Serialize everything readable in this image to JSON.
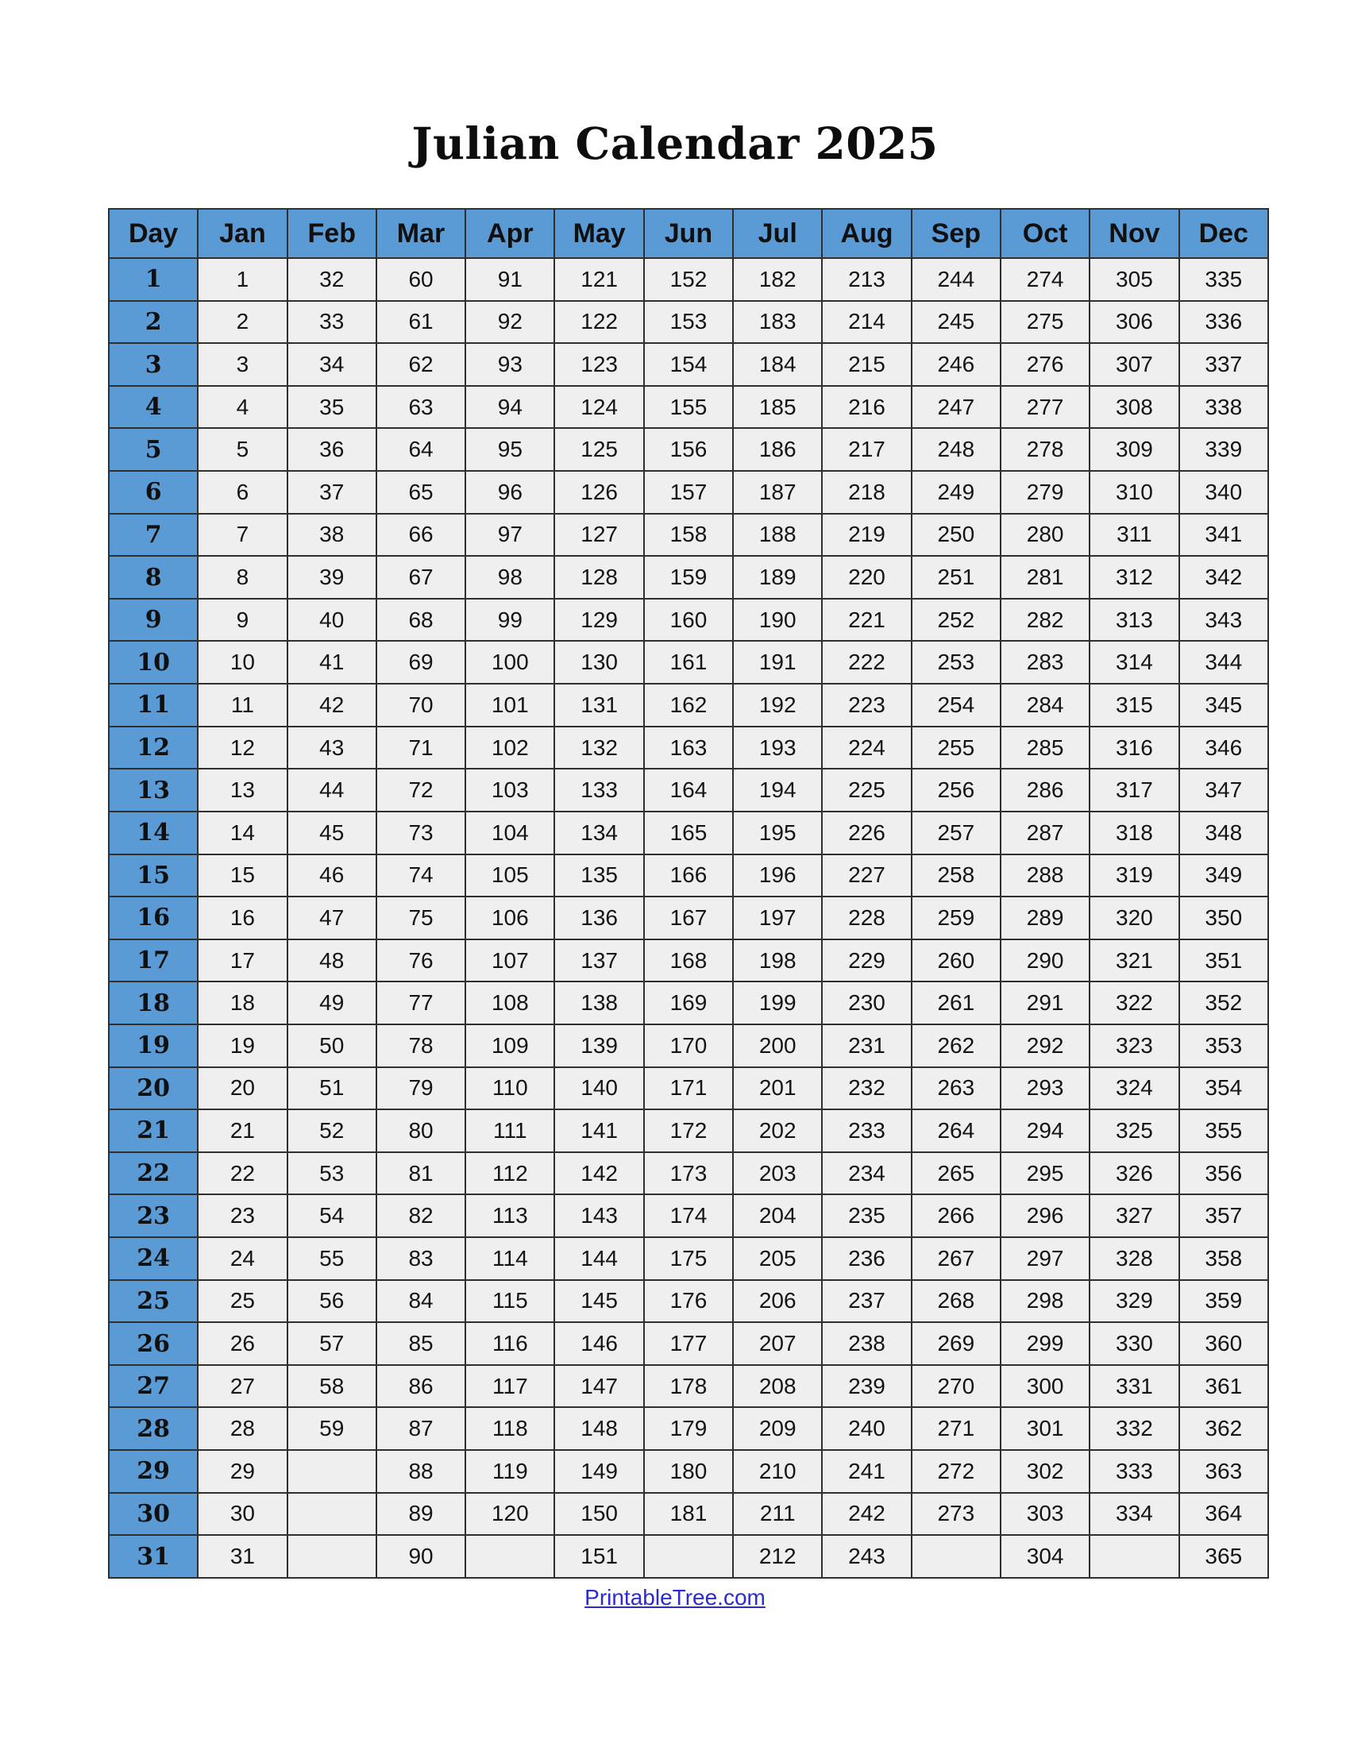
{
  "title": "Julian Calendar 2025",
  "footer": {
    "link_text": "PrintableTree.com"
  },
  "colors": {
    "header_bg": "#5B9BD5",
    "cell_bg": "#EFEFEF",
    "border": "#2F2F2F",
    "link": "#2B2BD2"
  },
  "table": {
    "corner_header": "Day",
    "month_headers": [
      "Jan",
      "Feb",
      "Mar",
      "Apr",
      "May",
      "Jun",
      "Jul",
      "Aug",
      "Sep",
      "Oct",
      "Nov",
      "Dec"
    ],
    "rows": [
      {
        "day": "1",
        "values": [
          "1",
          "32",
          "60",
          "91",
          "121",
          "152",
          "182",
          "213",
          "244",
          "274",
          "305",
          "335"
        ]
      },
      {
        "day": "2",
        "values": [
          "2",
          "33",
          "61",
          "92",
          "122",
          "153",
          "183",
          "214",
          "245",
          "275",
          "306",
          "336"
        ]
      },
      {
        "day": "3",
        "values": [
          "3",
          "34",
          "62",
          "93",
          "123",
          "154",
          "184",
          "215",
          "246",
          "276",
          "307",
          "337"
        ]
      },
      {
        "day": "4",
        "values": [
          "4",
          "35",
          "63",
          "94",
          "124",
          "155",
          "185",
          "216",
          "247",
          "277",
          "308",
          "338"
        ]
      },
      {
        "day": "5",
        "values": [
          "5",
          "36",
          "64",
          "95",
          "125",
          "156",
          "186",
          "217",
          "248",
          "278",
          "309",
          "339"
        ]
      },
      {
        "day": "6",
        "values": [
          "6",
          "37",
          "65",
          "96",
          "126",
          "157",
          "187",
          "218",
          "249",
          "279",
          "310",
          "340"
        ]
      },
      {
        "day": "7",
        "values": [
          "7",
          "38",
          "66",
          "97",
          "127",
          "158",
          "188",
          "219",
          "250",
          "280",
          "311",
          "341"
        ]
      },
      {
        "day": "8",
        "values": [
          "8",
          "39",
          "67",
          "98",
          "128",
          "159",
          "189",
          "220",
          "251",
          "281",
          "312",
          "342"
        ]
      },
      {
        "day": "9",
        "values": [
          "9",
          "40",
          "68",
          "99",
          "129",
          "160",
          "190",
          "221",
          "252",
          "282",
          "313",
          "343"
        ]
      },
      {
        "day": "10",
        "values": [
          "10",
          "41",
          "69",
          "100",
          "130",
          "161",
          "191",
          "222",
          "253",
          "283",
          "314",
          "344"
        ]
      },
      {
        "day": "11",
        "values": [
          "11",
          "42",
          "70",
          "101",
          "131",
          "162",
          "192",
          "223",
          "254",
          "284",
          "315",
          "345"
        ]
      },
      {
        "day": "12",
        "values": [
          "12",
          "43",
          "71",
          "102",
          "132",
          "163",
          "193",
          "224",
          "255",
          "285",
          "316",
          "346"
        ]
      },
      {
        "day": "13",
        "values": [
          "13",
          "44",
          "72",
          "103",
          "133",
          "164",
          "194",
          "225",
          "256",
          "286",
          "317",
          "347"
        ]
      },
      {
        "day": "14",
        "values": [
          "14",
          "45",
          "73",
          "104",
          "134",
          "165",
          "195",
          "226",
          "257",
          "287",
          "318",
          "348"
        ]
      },
      {
        "day": "15",
        "values": [
          "15",
          "46",
          "74",
          "105",
          "135",
          "166",
          "196",
          "227",
          "258",
          "288",
          "319",
          "349"
        ]
      },
      {
        "day": "16",
        "values": [
          "16",
          "47",
          "75",
          "106",
          "136",
          "167",
          "197",
          "228",
          "259",
          "289",
          "320",
          "350"
        ]
      },
      {
        "day": "17",
        "values": [
          "17",
          "48",
          "76",
          "107",
          "137",
          "168",
          "198",
          "229",
          "260",
          "290",
          "321",
          "351"
        ]
      },
      {
        "day": "18",
        "values": [
          "18",
          "49",
          "77",
          "108",
          "138",
          "169",
          "199",
          "230",
          "261",
          "291",
          "322",
          "352"
        ]
      },
      {
        "day": "19",
        "values": [
          "19",
          "50",
          "78",
          "109",
          "139",
          "170",
          "200",
          "231",
          "262",
          "292",
          "323",
          "353"
        ]
      },
      {
        "day": "20",
        "values": [
          "20",
          "51",
          "79",
          "110",
          "140",
          "171",
          "201",
          "232",
          "263",
          "293",
          "324",
          "354"
        ]
      },
      {
        "day": "21",
        "values": [
          "21",
          "52",
          "80",
          "111",
          "141",
          "172",
          "202",
          "233",
          "264",
          "294",
          "325",
          "355"
        ]
      },
      {
        "day": "22",
        "values": [
          "22",
          "53",
          "81",
          "112",
          "142",
          "173",
          "203",
          "234",
          "265",
          "295",
          "326",
          "356"
        ]
      },
      {
        "day": "23",
        "values": [
          "23",
          "54",
          "82",
          "113",
          "143",
          "174",
          "204",
          "235",
          "266",
          "296",
          "327",
          "357"
        ]
      },
      {
        "day": "24",
        "values": [
          "24",
          "55",
          "83",
          "114",
          "144",
          "175",
          "205",
          "236",
          "267",
          "297",
          "328",
          "358"
        ]
      },
      {
        "day": "25",
        "values": [
          "25",
          "56",
          "84",
          "115",
          "145",
          "176",
          "206",
          "237",
          "268",
          "298",
          "329",
          "359"
        ]
      },
      {
        "day": "26",
        "values": [
          "26",
          "57",
          "85",
          "116",
          "146",
          "177",
          "207",
          "238",
          "269",
          "299",
          "330",
          "360"
        ]
      },
      {
        "day": "27",
        "values": [
          "27",
          "58",
          "86",
          "117",
          "147",
          "178",
          "208",
          "239",
          "270",
          "300",
          "331",
          "361"
        ]
      },
      {
        "day": "28",
        "values": [
          "28",
          "59",
          "87",
          "118",
          "148",
          "179",
          "209",
          "240",
          "271",
          "301",
          "332",
          "362"
        ]
      },
      {
        "day": "29",
        "values": [
          "29",
          "",
          "88",
          "119",
          "149",
          "180",
          "210",
          "241",
          "272",
          "302",
          "333",
          "363"
        ]
      },
      {
        "day": "30",
        "values": [
          "30",
          "",
          "89",
          "120",
          "150",
          "181",
          "211",
          "242",
          "273",
          "303",
          "334",
          "364"
        ]
      },
      {
        "day": "31",
        "values": [
          "31",
          "",
          "90",
          "",
          "151",
          "",
          "212",
          "243",
          "",
          "304",
          "",
          "365"
        ]
      }
    ]
  }
}
